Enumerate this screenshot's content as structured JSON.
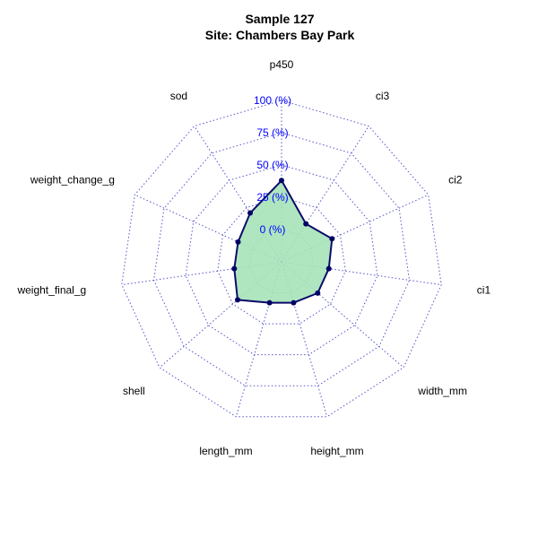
{
  "chart_data": {
    "type": "radar",
    "title": "Sample 127",
    "subtitle": "Site: Chambers Bay Park",
    "axes": [
      "p450",
      "ci3",
      "ci2",
      "ci1",
      "width_mm",
      "height_mm",
      "length_mm",
      "shell",
      "weight_final_g",
      "weight_change_g",
      "sod"
    ],
    "values": [
      38,
      10,
      18,
      12,
      12,
      8,
      8,
      20,
      12,
      12,
      20
    ],
    "rlim": [
      -25,
      100
    ],
    "ticks": [
      0,
      25,
      50,
      75,
      100
    ],
    "tick_labels": [
      "0 (%)",
      "25 (%)",
      "50 (%)",
      "75 (%)",
      "100 (%)"
    ],
    "grid": true,
    "colors": {
      "fill": "#a6e3b8",
      "line": "#0b0b6b",
      "grid": "#5555cc",
      "tick_text": "#0000ff"
    }
  }
}
